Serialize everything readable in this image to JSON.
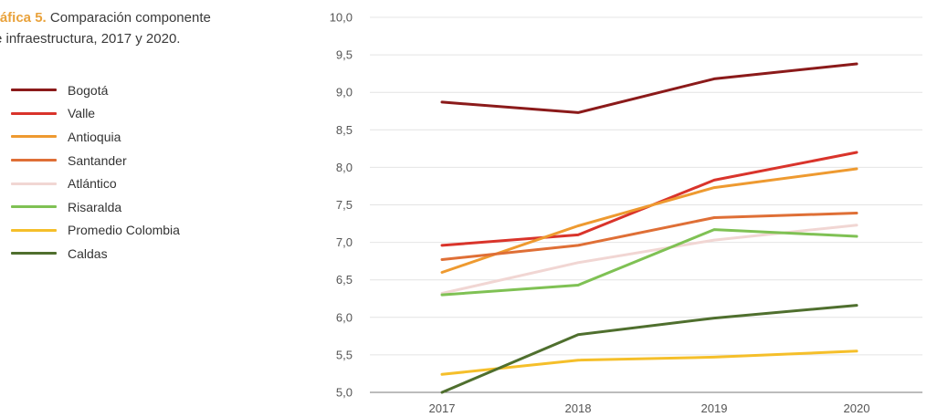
{
  "title": {
    "label": "ráfica 5.",
    "text": "Comparación componente",
    "text2": "e infraestructura, 2017 y 2020."
  },
  "chart_data": {
    "type": "line",
    "title": "ráfica 5. Comparación componente e infraestructura, 2017 y 2020.",
    "xlabel": "",
    "ylabel": "",
    "categories": [
      "2017",
      "2018",
      "2019",
      "2020"
    ],
    "ylim": [
      5.0,
      10.0
    ],
    "yticks": [
      "10,0",
      "9,5",
      "9,0",
      "8,5",
      "8,0",
      "7,5",
      "7,0",
      "6,5",
      "6,0",
      "5,5",
      "5,0"
    ],
    "ytick_values": [
      10.0,
      9.5,
      9.0,
      8.5,
      8.0,
      7.5,
      7.0,
      6.5,
      6.0,
      5.5,
      5.0
    ],
    "grid": true,
    "legend_position": "left",
    "series": [
      {
        "name": "Bogotá",
        "color": "#8b1a1a",
        "values": [
          8.87,
          8.73,
          9.18,
          9.38
        ]
      },
      {
        "name": "Valle",
        "color": "#d9342b",
        "values": [
          6.96,
          7.1,
          7.83,
          8.2
        ]
      },
      {
        "name": "Antioquia",
        "color": "#ee9a30",
        "values": [
          6.6,
          7.22,
          7.73,
          7.98
        ]
      },
      {
        "name": "Santander",
        "color": "#df6f36",
        "values": [
          6.77,
          6.96,
          7.33,
          7.39
        ]
      },
      {
        "name": "Atlántico",
        "color": "#f1d6d3",
        "values": [
          6.32,
          6.73,
          7.03,
          7.23
        ]
      },
      {
        "name": "Risaralda",
        "color": "#7fc154",
        "values": [
          6.3,
          6.43,
          7.17,
          7.08
        ]
      },
      {
        "name": "Promedio Colombia",
        "color": "#f5bf2a",
        "values": [
          5.24,
          5.43,
          5.47,
          5.55
        ]
      },
      {
        "name": "Caldas",
        "color": "#4f6f2e",
        "values": [
          5.0,
          5.77,
          5.99,
          6.16
        ]
      }
    ]
  }
}
